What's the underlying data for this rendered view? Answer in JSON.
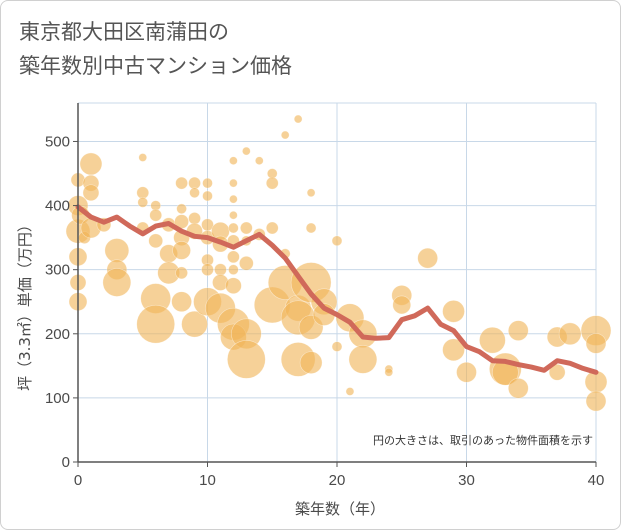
{
  "title": {
    "line1": "東京都大田区南蒲田の",
    "line2": "築年数別中古マンション価格"
  },
  "colors": {
    "bubble": "#f0b458",
    "line": "#d0695a",
    "grid": "#c8d8e8",
    "axis": "#555555"
  },
  "chart_data": {
    "type": "scatter",
    "xlabel": "築年数（年）",
    "ylabel": "坪（3.3㎡）単価（万円）",
    "xlim": [
      0,
      40
    ],
    "ylim": [
      0,
      560
    ],
    "x_ticks": [
      "0",
      "10",
      "20",
      "30",
      "40"
    ],
    "y_ticks": [
      "0",
      "100",
      "200",
      "300",
      "400",
      "500"
    ],
    "x_tick_values": [
      0,
      10,
      20,
      30,
      40
    ],
    "y_tick_values": [
      0,
      100,
      200,
      300,
      400,
      500
    ],
    "note": "円の大きさは、取引のあった物件面積を示す",
    "series": [
      {
        "kind": "bubble",
        "points": [
          {
            "x": 0,
            "y": 400,
            "s": 10
          },
          {
            "x": 0,
            "y": 360,
            "s": 12
          },
          {
            "x": 0,
            "y": 320,
            "s": 9
          },
          {
            "x": 0,
            "y": 280,
            "s": 8
          },
          {
            "x": 0,
            "y": 250,
            "s": 9
          },
          {
            "x": 0,
            "y": 440,
            "s": 7
          },
          {
            "x": 0.2,
            "y": 385,
            "s": 9
          },
          {
            "x": 0.5,
            "y": 350,
            "s": 6
          },
          {
            "x": 1,
            "y": 465,
            "s": 11
          },
          {
            "x": 1,
            "y": 435,
            "s": 8
          },
          {
            "x": 1,
            "y": 420,
            "s": 8
          },
          {
            "x": 1,
            "y": 365,
            "s": 10
          },
          {
            "x": 2,
            "y": 370,
            "s": 7
          },
          {
            "x": 3,
            "y": 330,
            "s": 12
          },
          {
            "x": 3,
            "y": 300,
            "s": 10
          },
          {
            "x": 3,
            "y": 280,
            "s": 14
          },
          {
            "x": 5,
            "y": 475,
            "s": 4
          },
          {
            "x": 5,
            "y": 420,
            "s": 6
          },
          {
            "x": 5,
            "y": 405,
            "s": 5
          },
          {
            "x": 5,
            "y": 365,
            "s": 6
          },
          {
            "x": 6,
            "y": 400,
            "s": 5
          },
          {
            "x": 6,
            "y": 385,
            "s": 6
          },
          {
            "x": 6,
            "y": 345,
            "s": 7
          },
          {
            "x": 6,
            "y": 255,
            "s": 15
          },
          {
            "x": 6,
            "y": 215,
            "s": 19
          },
          {
            "x": 7,
            "y": 370,
            "s": 7
          },
          {
            "x": 7,
            "y": 325,
            "s": 9
          },
          {
            "x": 7,
            "y": 295,
            "s": 11
          },
          {
            "x": 8,
            "y": 435,
            "s": 6
          },
          {
            "x": 8,
            "y": 395,
            "s": 5
          },
          {
            "x": 8,
            "y": 375,
            "s": 7
          },
          {
            "x": 8,
            "y": 350,
            "s": 8
          },
          {
            "x": 8,
            "y": 330,
            "s": 9
          },
          {
            "x": 8,
            "y": 295,
            "s": 6
          },
          {
            "x": 8,
            "y": 250,
            "s": 10
          },
          {
            "x": 9,
            "y": 435,
            "s": 6
          },
          {
            "x": 9,
            "y": 420,
            "s": 5
          },
          {
            "x": 9,
            "y": 380,
            "s": 6
          },
          {
            "x": 9,
            "y": 360,
            "s": 8
          },
          {
            "x": 9,
            "y": 215,
            "s": 13
          },
          {
            "x": 10,
            "y": 435,
            "s": 5
          },
          {
            "x": 10,
            "y": 415,
            "s": 5
          },
          {
            "x": 10,
            "y": 370,
            "s": 6
          },
          {
            "x": 10,
            "y": 350,
            "s": 7
          },
          {
            "x": 10,
            "y": 315,
            "s": 6
          },
          {
            "x": 10,
            "y": 300,
            "s": 6
          },
          {
            "x": 10,
            "y": 250,
            "s": 14
          },
          {
            "x": 11,
            "y": 360,
            "s": 9
          },
          {
            "x": 11,
            "y": 340,
            "s": 8
          },
          {
            "x": 11,
            "y": 300,
            "s": 6
          },
          {
            "x": 11,
            "y": 280,
            "s": 8
          },
          {
            "x": 11,
            "y": 240,
            "s": 15
          },
          {
            "x": 12,
            "y": 470,
            "s": 4
          },
          {
            "x": 12,
            "y": 435,
            "s": 4
          },
          {
            "x": 12,
            "y": 410,
            "s": 4
          },
          {
            "x": 12,
            "y": 385,
            "s": 4
          },
          {
            "x": 12,
            "y": 365,
            "s": 5
          },
          {
            "x": 12,
            "y": 345,
            "s": 6
          },
          {
            "x": 12,
            "y": 320,
            "s": 6
          },
          {
            "x": 12,
            "y": 300,
            "s": 5
          },
          {
            "x": 12,
            "y": 275,
            "s": 8
          },
          {
            "x": 12,
            "y": 215,
            "s": 16
          },
          {
            "x": 12,
            "y": 195,
            "s": 13
          },
          {
            "x": 13,
            "y": 485,
            "s": 4
          },
          {
            "x": 13,
            "y": 365,
            "s": 6
          },
          {
            "x": 13,
            "y": 345,
            "s": 5
          },
          {
            "x": 13,
            "y": 310,
            "s": 7
          },
          {
            "x": 13,
            "y": 200,
            "s": 15
          },
          {
            "x": 13,
            "y": 160,
            "s": 19
          },
          {
            "x": 14,
            "y": 470,
            "s": 4
          },
          {
            "x": 14,
            "y": 355,
            "s": 6
          },
          {
            "x": 15,
            "y": 450,
            "s": 5
          },
          {
            "x": 15,
            "y": 435,
            "s": 6
          },
          {
            "x": 15,
            "y": 365,
            "s": 6
          },
          {
            "x": 15,
            "y": 245,
            "s": 18
          },
          {
            "x": 16,
            "y": 510,
            "s": 4
          },
          {
            "x": 16,
            "y": 325,
            "s": 5
          },
          {
            "x": 16,
            "y": 280,
            "s": 17
          },
          {
            "x": 17,
            "y": 535,
            "s": 4
          },
          {
            "x": 17,
            "y": 240,
            "s": 13
          },
          {
            "x": 17,
            "y": 225,
            "s": 17
          },
          {
            "x": 17,
            "y": 160,
            "s": 17
          },
          {
            "x": 18,
            "y": 420,
            "s": 4
          },
          {
            "x": 18,
            "y": 365,
            "s": 5
          },
          {
            "x": 18,
            "y": 280,
            "s": 20
          },
          {
            "x": 18,
            "y": 210,
            "s": 12
          },
          {
            "x": 18,
            "y": 155,
            "s": 11
          },
          {
            "x": 19,
            "y": 250,
            "s": 13
          },
          {
            "x": 19,
            "y": 230,
            "s": 11
          },
          {
            "x": 20,
            "y": 345,
            "s": 5
          },
          {
            "x": 20,
            "y": 180,
            "s": 5
          },
          {
            "x": 21,
            "y": 225,
            "s": 14
          },
          {
            "x": 21,
            "y": 110,
            "s": 4
          },
          {
            "x": 22,
            "y": 200,
            "s": 14
          },
          {
            "x": 22,
            "y": 160,
            "s": 14
          },
          {
            "x": 24,
            "y": 145,
            "s": 4
          },
          {
            "x": 24,
            "y": 140,
            "s": 4
          },
          {
            "x": 25,
            "y": 260,
            "s": 10
          },
          {
            "x": 25,
            "y": 245,
            "s": 9
          },
          {
            "x": 27,
            "y": 318,
            "s": 10
          },
          {
            "x": 29,
            "y": 235,
            "s": 11
          },
          {
            "x": 29,
            "y": 175,
            "s": 11
          },
          {
            "x": 30,
            "y": 140,
            "s": 10
          },
          {
            "x": 32,
            "y": 190,
            "s": 13
          },
          {
            "x": 33,
            "y": 145,
            "s": 16
          },
          {
            "x": 33,
            "y": 140,
            "s": 13
          },
          {
            "x": 34,
            "y": 205,
            "s": 10
          },
          {
            "x": 34,
            "y": 115,
            "s": 10
          },
          {
            "x": 37,
            "y": 195,
            "s": 10
          },
          {
            "x": 37,
            "y": 140,
            "s": 8
          },
          {
            "x": 38,
            "y": 200,
            "s": 11
          },
          {
            "x": 40,
            "y": 205,
            "s": 15
          },
          {
            "x": 40,
            "y": 185,
            "s": 10
          },
          {
            "x": 40,
            "y": 125,
            "s": 11
          },
          {
            "x": 40,
            "y": 95,
            "s": 10
          }
        ]
      },
      {
        "kind": "line",
        "x": [
          0,
          1,
          2,
          3,
          4,
          5,
          6,
          7,
          8,
          9,
          10,
          11,
          12,
          13,
          14,
          15,
          16,
          17,
          18,
          19,
          20,
          21,
          22,
          23,
          24,
          25,
          26,
          27,
          28,
          29,
          30,
          31,
          32,
          33,
          34,
          35,
          36,
          37,
          38,
          39,
          40
        ],
        "values": [
          398,
          382,
          374,
          382,
          368,
          356,
          368,
          372,
          360,
          352,
          350,
          343,
          335,
          345,
          355,
          338,
          318,
          290,
          262,
          240,
          230,
          218,
          195,
          193,
          194,
          222,
          228,
          240,
          215,
          205,
          180,
          172,
          158,
          157,
          152,
          148,
          143,
          158,
          154,
          146,
          140
        ]
      }
    ]
  }
}
